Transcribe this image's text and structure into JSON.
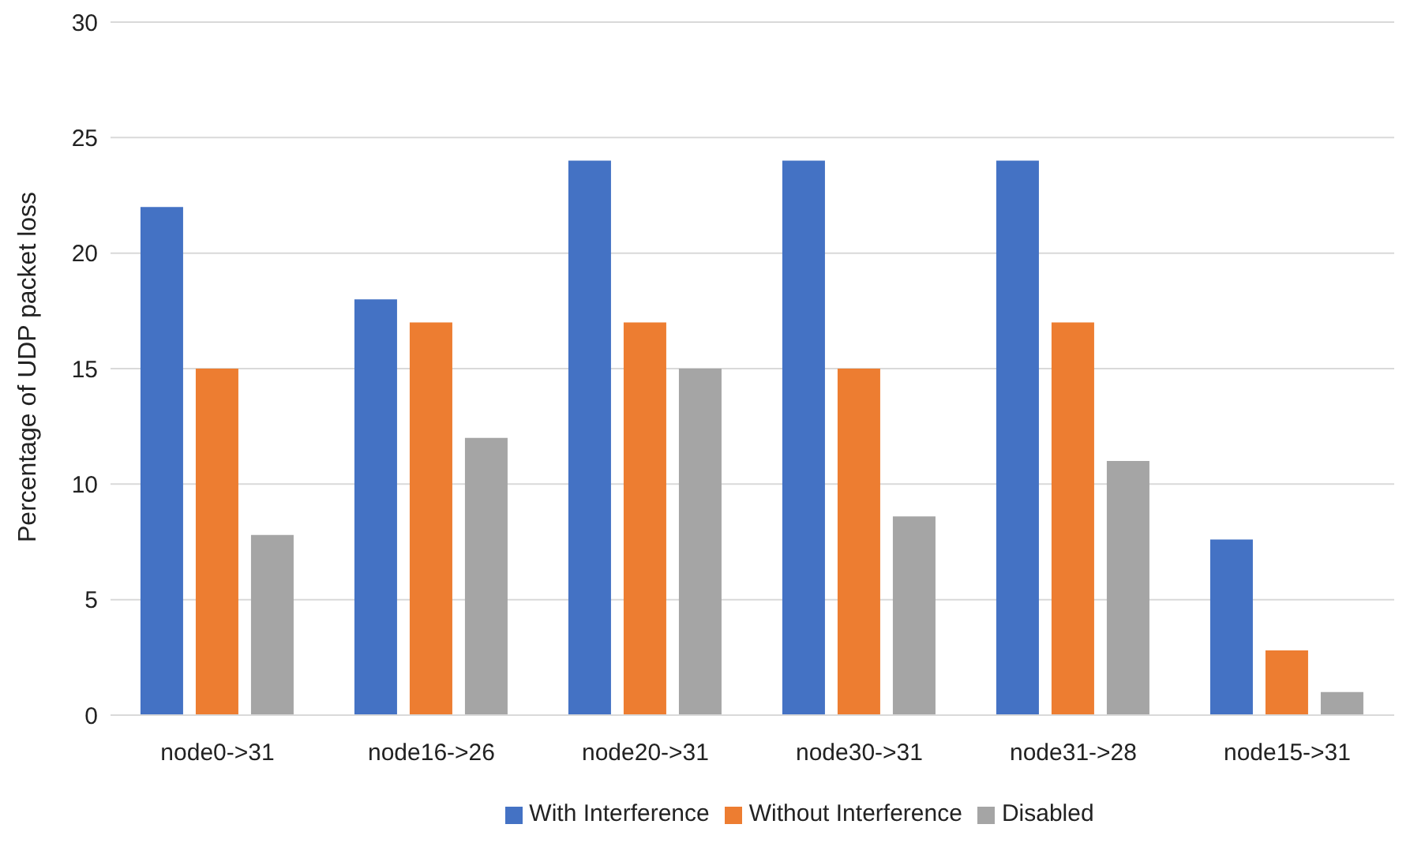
{
  "chart_data": {
    "type": "bar",
    "ylabel": "Percentage of UDP packet loss",
    "categories": [
      "node0->31",
      "node16->26",
      "node20->31",
      "node30->31",
      "node31->28",
      "node15->31"
    ],
    "series": [
      {
        "name": "With Interference",
        "color": "#4472c4",
        "values": [
          22,
          18,
          24,
          24,
          24,
          7.6
        ]
      },
      {
        "name": "Without Interference",
        "color": "#ed7d31",
        "values": [
          15,
          17,
          17,
          15,
          17,
          2.8
        ]
      },
      {
        "name": "Disabled",
        "color": "#a5a5a5",
        "values": [
          7.8,
          12,
          15,
          8.6,
          11,
          1.0
        ]
      }
    ],
    "ylim": [
      0,
      30
    ],
    "yticks": [
      0,
      5,
      10,
      15,
      20,
      25,
      30
    ],
    "grid": "y",
    "legend": "bottom"
  }
}
